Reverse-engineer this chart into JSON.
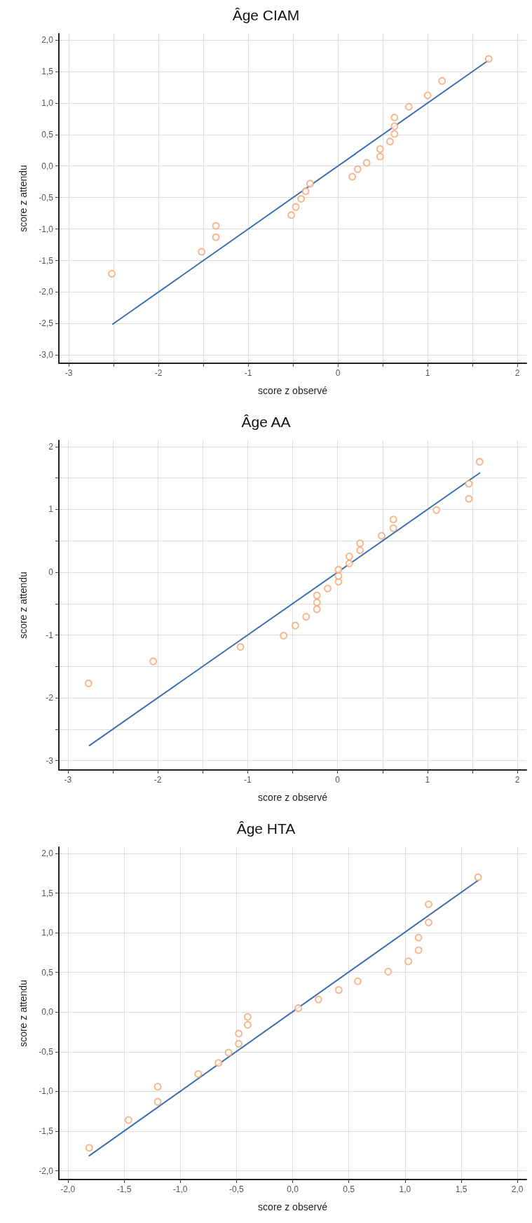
{
  "chart_data": [
    {
      "type": "scatter",
      "title": "Âge CIAM",
      "xlabel": "score z observé",
      "ylabel": "score z attendu",
      "xlim": [
        -3.11,
        2.1
      ],
      "ylim": [
        -3.13,
        2.1
      ],
      "grid": true,
      "marker": "circle",
      "xticks": [
        -3,
        {
          "value": -2.5,
          "label": null
        },
        -2,
        {
          "value": -1.5,
          "label": null
        },
        -1,
        {
          "value": -0.5,
          "label": null
        },
        0,
        {
          "value": 0.5,
          "label": null
        },
        1,
        {
          "value": 1.5,
          "label": null
        },
        2
      ],
      "yticks": [
        {
          "value": -3,
          "label": "-3,0"
        },
        {
          "value": -2.5,
          "label": "-2,5"
        },
        {
          "value": -2,
          "label": "-2,0"
        },
        {
          "value": -1.5,
          "label": "-1,5"
        },
        {
          "value": -1,
          "label": "-1,0"
        },
        {
          "value": -0.5,
          "label": "-0,5"
        },
        {
          "value": 0,
          "label": "0,0"
        },
        {
          "value": 0.5,
          "label": "0,5"
        },
        {
          "value": 1,
          "label": "1,0"
        },
        {
          "value": 1.5,
          "label": "1,5"
        },
        {
          "value": 2,
          "label": "2,0"
        }
      ],
      "series": [
        {
          "color": "#f5a470",
          "x": [
            -2.52,
            -1.52,
            -1.36,
            -1.36,
            -0.52,
            -0.47,
            -0.41,
            -0.36,
            -0.31,
            0.16,
            0.22,
            0.32,
            0.47,
            0.47,
            0.58,
            0.63,
            0.63,
            0.63,
            0.79,
            1.0,
            1.16,
            1.68
          ],
          "values": [
            -1.71,
            -1.36,
            -0.95,
            -1.13,
            -0.78,
            -0.65,
            -0.52,
            -0.4,
            -0.28,
            -0.17,
            -0.05,
            0.05,
            0.15,
            0.27,
            0.39,
            0.51,
            0.63,
            0.77,
            0.94,
            1.12,
            1.35,
            1.7
          ]
        },
        {
          "type": "line",
          "color": "#3b6db4",
          "marker": "none",
          "x": [
            -2.51,
            1.68
          ],
          "values": [
            -2.51,
            1.68
          ]
        }
      ]
    },
    {
      "type": "scatter",
      "title": "Âge AA",
      "xlabel": "score z observé",
      "ylabel": "score z attendu",
      "xlim": [
        -3.1,
        2.1
      ],
      "ylim": [
        -3.15,
        2.1
      ],
      "grid": true,
      "marker": "circle",
      "xticks": [
        -3,
        {
          "value": -2.5,
          "label": null
        },
        -2,
        {
          "value": -1.5,
          "label": null
        },
        -1,
        {
          "value": -0.5,
          "label": null
        },
        0,
        {
          "value": 0.5,
          "label": null
        },
        1,
        {
          "value": 1.5,
          "label": null
        },
        2
      ],
      "yticks": [
        -3,
        {
          "value": -2.5,
          "label": null
        },
        -2,
        {
          "value": -1.5,
          "label": null
        },
        -1,
        {
          "value": -0.5,
          "label": null
        },
        0,
        {
          "value": 0.5,
          "label": null
        },
        1,
        {
          "value": 1.5,
          "label": null
        },
        2
      ],
      "series": [
        {
          "color": "#f5a470",
          "x": [
            -2.77,
            -2.05,
            -1.08,
            -0.6,
            -0.47,
            -0.35,
            -0.23,
            -0.23,
            -0.23,
            -0.11,
            0.01,
            0.01,
            0.01,
            0.13,
            0.13,
            0.25,
            0.25,
            0.49,
            0.62,
            0.62,
            1.1,
            1.46,
            1.46,
            1.58
          ],
          "values": [
            -1.77,
            -1.42,
            -1.19,
            -1.01,
            -0.85,
            -0.71,
            -0.59,
            -0.48,
            -0.37,
            -0.26,
            -0.15,
            -0.06,
            0.04,
            0.14,
            0.25,
            0.35,
            0.46,
            0.58,
            0.7,
            0.84,
            0.99,
            1.17,
            1.41,
            1.76
          ]
        },
        {
          "type": "line",
          "color": "#3b6db4",
          "marker": "none",
          "x": [
            -2.76,
            1.58
          ],
          "values": [
            -2.76,
            1.58
          ]
        }
      ]
    },
    {
      "type": "scatter",
      "title": "Âge HTA",
      "xlabel": "score z observé",
      "ylabel": "score z attendu",
      "xlim": [
        -2.08,
        2.08
      ],
      "ylim": [
        -2.11,
        2.08
      ],
      "grid": true,
      "marker": "circle",
      "xticks": [
        {
          "value": -2,
          "label": "-2,0"
        },
        {
          "value": -1.5,
          "label": "-1,5"
        },
        {
          "value": -1,
          "label": "-1,0"
        },
        {
          "value": -0.5,
          "label": "-0,5"
        },
        {
          "value": 0,
          "label": "0,0"
        },
        {
          "value": 0.5,
          "label": "0,5"
        },
        {
          "value": 1,
          "label": "1,0"
        },
        {
          "value": 1.5,
          "label": "1,5"
        },
        {
          "value": 2,
          "label": "2,0"
        }
      ],
      "yticks": [
        {
          "value": -2,
          "label": "-2,0"
        },
        {
          "value": -1.5,
          "label": "-1,5"
        },
        {
          "value": -1,
          "label": "-1,0"
        },
        {
          "value": -0.5,
          "label": "-0,5"
        },
        {
          "value": 0,
          "label": "0,0"
        },
        {
          "value": 0.5,
          "label": "0,5"
        },
        {
          "value": 1,
          "label": "1,0"
        },
        {
          "value": 1.5,
          "label": "1,5"
        },
        {
          "value": 2,
          "label": "2,0"
        }
      ],
      "series": [
        {
          "color": "#f5a470",
          "x": [
            -1.81,
            -1.46,
            -1.2,
            -1.2,
            -0.84,
            -0.66,
            -0.57,
            -0.48,
            -0.48,
            -0.4,
            -0.4,
            0.05,
            0.23,
            0.41,
            0.58,
            0.85,
            1.03,
            1.12,
            1.12,
            1.21,
            1.21,
            1.65
          ],
          "values": [
            -1.71,
            -1.36,
            -1.13,
            -0.94,
            -0.78,
            -0.64,
            -0.51,
            -0.4,
            -0.27,
            -0.16,
            -0.06,
            0.05,
            0.16,
            0.28,
            0.39,
            0.51,
            0.64,
            0.78,
            0.94,
            1.13,
            1.36,
            1.7
          ]
        },
        {
          "type": "line",
          "color": "#3b6db4",
          "marker": "none",
          "x": [
            -1.81,
            1.65
          ],
          "values": [
            -1.81,
            1.66
          ]
        }
      ]
    }
  ]
}
